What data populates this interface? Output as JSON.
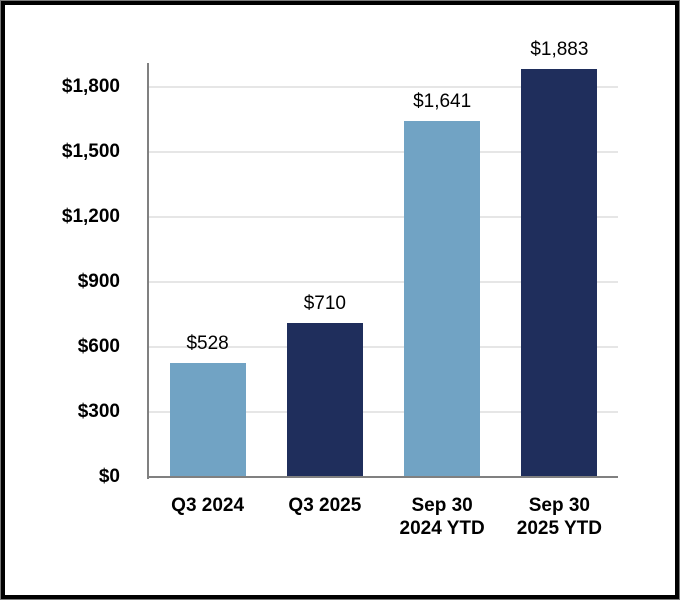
{
  "chart_data": {
    "type": "bar",
    "title": "",
    "xlabel": "",
    "ylabel": "",
    "categories": [
      [
        "Q3 2024"
      ],
      [
        "Q3 2025"
      ],
      [
        "Sep 30",
        "2024 YTD"
      ],
      [
        "Sep 30",
        "2025 YTD"
      ]
    ],
    "values": [
      528,
      710,
      1641,
      1883
    ],
    "data_labels": [
      "$528",
      "$710",
      "$1,641",
      "$1,883"
    ],
    "bar_colors": [
      "#71A3C4",
      "#1F2E5C",
      "#71A3C4",
      "#1F2E5C"
    ],
    "y_ticks": [
      0,
      300,
      600,
      900,
      1200,
      1500,
      1800
    ],
    "y_tick_labels": [
      "$0",
      "$300",
      "$600",
      "$900",
      "$1,200",
      "$1,500",
      "$1,800"
    ],
    "ylim": [
      0,
      1910
    ],
    "grid": true,
    "legend": false,
    "gridline_color": "#E6E6E6",
    "axis_color": "#808080",
    "frame_color": "#000000",
    "background_color": "#FFFFFF"
  }
}
